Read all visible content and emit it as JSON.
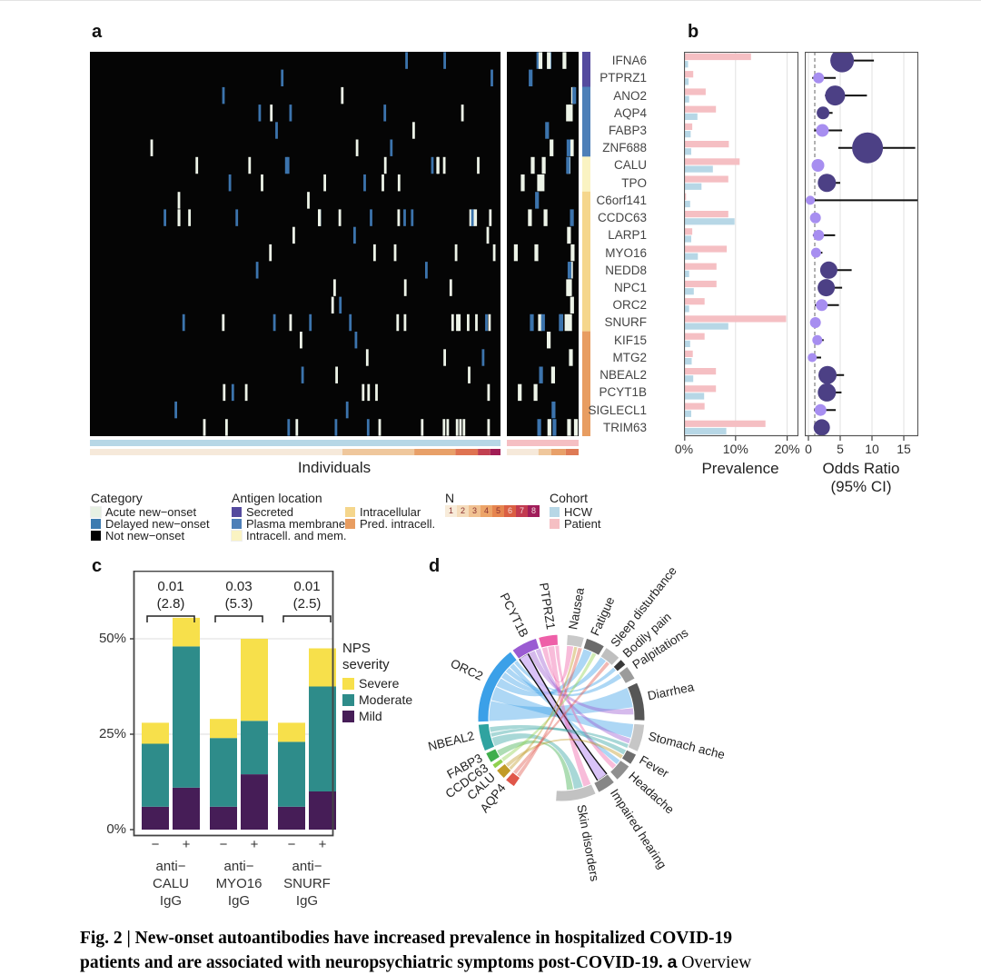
{
  "panels": {
    "a": "a",
    "b": "b",
    "c": "c",
    "d": "d"
  },
  "heatmap_x_title": "Individuals",
  "axes": {
    "prevalence_title": "Prevalence",
    "or_title_line1": "Odds Ratio",
    "or_title_line2": "(95% CI)",
    "prev_ticks": [
      "0%",
      "10%",
      "20%"
    ],
    "or_ticks": [
      "0",
      "5",
      "10",
      "15"
    ],
    "nps_yticks": [
      "50%",
      "25%",
      "0%"
    ]
  },
  "legend": {
    "category": {
      "title": "Category",
      "items": [
        {
          "label": "Acute new−onset",
          "color": "#e7f0e3"
        },
        {
          "label": "Delayed new−onset",
          "color": "#3d7bb0"
        },
        {
          "label": "Not new−onset",
          "color": "#000000"
        }
      ]
    },
    "antigen": {
      "title": "Antigen location",
      "col1": [
        {
          "label": "Secreted",
          "color": "#544a9e"
        },
        {
          "label": "Plasma membrane",
          "color": "#4d7fb8"
        },
        {
          "label": "Intracell. and mem.",
          "color": "#faf3c2"
        }
      ],
      "col2": [
        {
          "label": "Intracellular",
          "color": "#f5d68c"
        },
        {
          "label": "Pred. intracell.",
          "color": "#e89d61"
        }
      ]
    },
    "n": {
      "title": "N",
      "labels": [
        "1",
        "2",
        "3",
        "4",
        "5",
        "6",
        "7",
        "8"
      ],
      "colors": [
        "#f8ecda",
        "#f5dcbb",
        "#f1c292",
        "#eca468",
        "#e6854f",
        "#da5f43",
        "#c23b50",
        "#a01d5a"
      ]
    },
    "cohort": {
      "title": "Cohort",
      "items": [
        {
          "label": "HCW",
          "color": "#b7d7e6"
        },
        {
          "label": "Patient",
          "color": "#f5bfc3"
        }
      ]
    },
    "nps": {
      "title_line1": "NPS",
      "title_line2": "severity",
      "items": [
        {
          "label": "Severe",
          "color": "#f7e04b"
        },
        {
          "label": "Moderate",
          "color": "#2e8c8a"
        },
        {
          "label": "Mild",
          "color": "#461d57"
        }
      ]
    }
  },
  "caption": {
    "line1": "Fig. 2 | New-onset autoantibodies have increased prevalence in hospitalized COVID-19",
    "line2": "patients and are associated with neuropsychiatric symptoms post-COVID-19. ",
    "panel_ref": "a",
    "tail": " Overview"
  },
  "chart_data": [
    {
      "id": "heatmap_a",
      "type": "heatmap",
      "description": "Individuals (columns, HCW block then Patient block) x autoantigens (rows); black = not new-onset, pale green = acute new-onset, blue = delayed new-onset",
      "tick_colors": {
        "acute": "#edf4e8",
        "delayed": "#3c74ad",
        "background": "#050505"
      },
      "rows": [
        {
          "gene": "IFNA6",
          "hcw": 2,
          "pat": 5,
          "blue": 0.55
        },
        {
          "gene": "PTPRZ1",
          "hcw": 2,
          "pat": 1,
          "blue": 0.5
        },
        {
          "gene": "ANO2",
          "hcw": 2,
          "pat": 2,
          "blue": 0.6
        },
        {
          "gene": "AQP4",
          "hcw": 5,
          "pat": 2,
          "blue": 0.4
        },
        {
          "gene": "FABP3",
          "hcw": 2,
          "pat": 1,
          "blue": 0.5
        },
        {
          "gene": "ZNF688",
          "hcw": 3,
          "pat": 3,
          "blue": 0.4
        },
        {
          "gene": "CALU",
          "hcw": 10,
          "pat": 4,
          "blue": 0.35
        },
        {
          "gene": "TPO",
          "hcw": 6,
          "pat": 3,
          "blue": 0.4
        },
        {
          "gene": "C6orf141",
          "hcw": 2,
          "pat": 1,
          "blue": 0.5
        },
        {
          "gene": "CCDC63",
          "hcw": 18,
          "pat": 3,
          "blue": 0.3
        },
        {
          "gene": "LARP1",
          "hcw": 3,
          "pat": 1,
          "blue": 0.4
        },
        {
          "gene": "MYO16",
          "hcw": 5,
          "pat": 3,
          "blue": 0.4
        },
        {
          "gene": "NEDD8",
          "hcw": 2,
          "pat": 2,
          "blue": 0.5
        },
        {
          "gene": "NPC1",
          "hcw": 3,
          "pat": 2,
          "blue": 0.4
        },
        {
          "gene": "ORC2",
          "hcw": 2,
          "pat": 1,
          "blue": 0.5
        },
        {
          "gene": "SNURF",
          "hcw": 15,
          "pat": 7,
          "blue": 0.3
        },
        {
          "gene": "KIF15",
          "hcw": 2,
          "pat": 1,
          "blue": 0.5
        },
        {
          "gene": "MTG2",
          "hcw": 3,
          "pat": 1,
          "blue": 0.4
        },
        {
          "gene": "NBEAL2",
          "hcw": 3,
          "pat": 2,
          "blue": 0.4
        },
        {
          "gene": "PCYT1B",
          "hcw": 7,
          "pat": 2,
          "blue": 0.35
        },
        {
          "gene": "SIGLECL1",
          "hcw": 2,
          "pat": 1,
          "blue": 0.5
        },
        {
          "gene": "TRIM63",
          "hcw": 14,
          "pat": 5,
          "blue": 0.3
        }
      ],
      "antigen_segments": [
        {
          "name": "Secreted",
          "rows": 2,
          "color": "#544a9e"
        },
        {
          "name": "Plasma membrane",
          "rows": 4,
          "color": "#4d7fb8"
        },
        {
          "name": "Intracell. and mem.",
          "rows": 2,
          "color": "#faf3c2"
        },
        {
          "name": "Intracellular",
          "rows": 8,
          "color": "#f5d68c"
        },
        {
          "name": "Pred. intracell.",
          "rows": 6,
          "color": "#e89d61"
        }
      ],
      "cohort_track": {
        "hcw_color": "#b7d7e6",
        "patient_color": "#f5bfc3"
      },
      "n_track_left": [
        {
          "color": "#f6e9da",
          "frac": 0.615
        },
        {
          "color": "#efc79c",
          "frac": 0.175
        },
        {
          "color": "#e8a069",
          "frac": 0.1
        },
        {
          "color": "#df7351",
          "frac": 0.055
        },
        {
          "color": "#c24050",
          "frac": 0.03
        },
        {
          "color": "#a11d55",
          "frac": 0.025
        }
      ],
      "n_track_right": [
        {
          "color": "#f6e9da",
          "frac": 0.44
        },
        {
          "color": "#efc79c",
          "frac": 0.18
        },
        {
          "color": "#e8a069",
          "frac": 0.2
        },
        {
          "color": "#de7a55",
          "frac": 0.18
        }
      ]
    },
    {
      "id": "prevalence_b",
      "type": "bar",
      "orientation": "horizontal",
      "xlabel": "Prevalence",
      "xlim": [
        0,
        22
      ],
      "xticks": [
        0,
        10,
        20
      ],
      "categories": [
        "IFNA6",
        "PTPRZ1",
        "ANO2",
        "AQP4",
        "FABP3",
        "ZNF688",
        "CALU",
        "TPO",
        "C6orf141",
        "CCDC63",
        "LARP1",
        "MYO16",
        "NEDD8",
        "NPC1",
        "ORC2",
        "SNURF",
        "KIF15",
        "MTG2",
        "NBEAL2",
        "PCYT1B",
        "SIGLECL1",
        "TRIM63"
      ],
      "series": [
        {
          "name": "Patient",
          "color": "#f5bfc3",
          "values": [
            13.0,
            1.8,
            4.2,
            6.2,
            1.6,
            8.7,
            10.8,
            8.6,
            0.4,
            8.6,
            1.6,
            8.3,
            6.3,
            6.3,
            4.0,
            19.8,
            4.0,
            1.7,
            6.2,
            6.2,
            4.0,
            15.8
          ]
        },
        {
          "name": "HCW",
          "color": "#b7d7e6",
          "values": [
            0.8,
            0.9,
            1.0,
            2.6,
            1.3,
            1.4,
            5.6,
            3.4,
            1.2,
            9.8,
            1.4,
            2.7,
            1.0,
            1.9,
            1.0,
            8.6,
            1.2,
            1.5,
            1.8,
            3.9,
            1.4,
            8.2
          ]
        }
      ]
    },
    {
      "id": "odds_ratio_b",
      "type": "scatter",
      "xlabel": "Odds Ratio (95% CI)",
      "xlim": [
        0,
        18
      ],
      "xticks": [
        0,
        5,
        10,
        15
      ],
      "ref_line": 1,
      "colors": {
        "significant": "#4c4085",
        "not_significant": "#a78ef0"
      },
      "categories": [
        "IFNA6",
        "PTPRZ1",
        "ANO2",
        "AQP4",
        "FABP3",
        "ZNF688",
        "CALU",
        "TPO",
        "C6orf141",
        "CCDC63",
        "LARP1",
        "MYO16",
        "NEDD8",
        "NPC1",
        "ORC2",
        "SNURF",
        "KIF15",
        "MTG2",
        "NBEAL2",
        "PCYT1B",
        "SIGLECL1",
        "TRIM63"
      ],
      "points": [
        {
          "or": 5.3,
          "lo": 3.6,
          "hi": 10.3,
          "sig": true,
          "r": 13
        },
        {
          "or": 1.6,
          "lo": 0.6,
          "hi": 4.3,
          "sig": false,
          "r": 6
        },
        {
          "or": 4.2,
          "lo": 2.6,
          "hi": 9.2,
          "sig": true,
          "r": 11
        },
        {
          "or": 2.3,
          "lo": 1.4,
          "hi": 3.8,
          "sig": true,
          "r": 7
        },
        {
          "or": 2.2,
          "lo": 0.9,
          "hi": 5.3,
          "sig": false,
          "r": 7
        },
        {
          "or": 9.3,
          "lo": 4.7,
          "hi": 16.8,
          "sig": true,
          "r": 17
        },
        {
          "or": 1.5,
          "lo": 1.0,
          "hi": 2.4,
          "sig": false,
          "r": 7
        },
        {
          "or": 2.9,
          "lo": 1.9,
          "hi": 5.0,
          "sig": true,
          "r": 10
        },
        {
          "or": 0.3,
          "lo": 0.0,
          "hi": 50.0,
          "sig": false,
          "r": 5
        },
        {
          "or": 1.1,
          "lo": 0.7,
          "hi": 1.8,
          "sig": false,
          "r": 6
        },
        {
          "or": 1.6,
          "lo": 0.7,
          "hi": 4.2,
          "sig": false,
          "r": 6
        },
        {
          "or": 1.2,
          "lo": 0.7,
          "hi": 2.2,
          "sig": false,
          "r": 5.5
        },
        {
          "or": 3.2,
          "lo": 1.9,
          "hi": 6.8,
          "sig": true,
          "r": 9.5
        },
        {
          "or": 2.8,
          "lo": 1.6,
          "hi": 5.3,
          "sig": true,
          "r": 9.5
        },
        {
          "or": 2.1,
          "lo": 1.0,
          "hi": 4.8,
          "sig": false,
          "r": 6.5
        },
        {
          "or": 1.1,
          "lo": 0.8,
          "hi": 1.6,
          "sig": false,
          "r": 6
        },
        {
          "or": 1.4,
          "lo": 0.7,
          "hi": 2.4,
          "sig": false,
          "r": 5.5
        },
        {
          "or": 0.6,
          "lo": 0.2,
          "hi": 2.0,
          "sig": false,
          "r": 5
        },
        {
          "or": 3.0,
          "lo": 1.9,
          "hi": 5.6,
          "sig": true,
          "r": 10
        },
        {
          "or": 2.9,
          "lo": 1.8,
          "hi": 5.2,
          "sig": true,
          "r": 10
        },
        {
          "or": 1.9,
          "lo": 0.9,
          "hi": 4.3,
          "sig": false,
          "r": 6.5
        },
        {
          "or": 2.1,
          "lo": 1.5,
          "hi": 3.0,
          "sig": true,
          "r": 9
        }
      ]
    },
    {
      "id": "nps_severity_c",
      "type": "stacked-bar",
      "ylim": [
        0,
        62
      ],
      "yticks": [
        0,
        25,
        50
      ],
      "series_order": [
        "mild",
        "moderate",
        "severe"
      ],
      "colors": {
        "mild": "#461d57",
        "moderate": "#2e8c8a",
        "severe": "#f7e04b"
      },
      "signs": [
        "−",
        "+"
      ],
      "groups": [
        {
          "lines": "anti−\nCALU\nIgG",
          "p": "0.01",
          "or": "(2.8)",
          "bars": [
            {
              "mild": 6,
              "moderate": 16.5,
              "severe": 5.5
            },
            {
              "mild": 11,
              "moderate": 37,
              "severe": 7.5
            }
          ]
        },
        {
          "lines": "anti−\nMYO16\nIgG",
          "p": "0.03",
          "or": "(5.3)",
          "bars": [
            {
              "mild": 6,
              "moderate": 18,
              "severe": 5
            },
            {
              "mild": 14.5,
              "moderate": 14,
              "severe": 21.5
            }
          ]
        },
        {
          "lines": "anti−\nSNURF\nIgG",
          "p": "0.01",
          "or": "(2.5)",
          "bars": [
            {
              "mild": 6,
              "moderate": 17,
              "severe": 5
            },
            {
              "mild": 10,
              "moderate": 27.5,
              "severe": 10
            }
          ]
        }
      ]
    },
    {
      "id": "chord_d",
      "type": "chord",
      "segments": [
        {
          "name": "Nausea",
          "side": "symptom",
          "color": "#c9c9c9",
          "a0": 4,
          "a1": 16
        },
        {
          "name": "Fatigue",
          "side": "symptom",
          "color": "#6b6b6b",
          "a0": 17.5,
          "a1": 31
        },
        {
          "name": "Sleep disturbance",
          "side": "symptom",
          "color": "#bfbfbf",
          "a0": 32.5,
          "a1": 44
        },
        {
          "name": "Bodily pain",
          "side": "symptom",
          "color": "#383838",
          "a0": 45.5,
          "a1": 50.5
        },
        {
          "name": "Palpitations",
          "side": "symptom",
          "color": "#9b9b9b",
          "a0": 52,
          "a1": 62
        },
        {
          "name": "Diarrhea",
          "side": "symptom",
          "color": "#565656",
          "a0": 65,
          "a1": 92
        },
        {
          "name": "Stomach ache",
          "side": "symptom",
          "color": "#c6c6c6",
          "a0": 94.5,
          "a1": 114
        },
        {
          "name": "Fever",
          "side": "symptom",
          "color": "#6e6e6e",
          "a0": 116,
          "a1": 124
        },
        {
          "name": "Headache",
          "side": "symptom",
          "color": "#8f8f8f",
          "a0": 125.5,
          "a1": 138
        },
        {
          "name": "Impaired hearing",
          "side": "symptom",
          "color": "#878787",
          "a0": 140.5,
          "a1": 153.5
        },
        {
          "name": "Skin disorders",
          "side": "symptom",
          "color": "#c2c2c2",
          "a0": 155.5,
          "a1": 184
        },
        {
          "name": "AQP4",
          "side": "gene",
          "color": "#e0564a",
          "a0": 214.5,
          "a1": 222
        },
        {
          "name": "CALU",
          "side": "gene",
          "color": "#c29b28",
          "a0": 223.5,
          "a1": 231
        },
        {
          "name": "CCDC63",
          "side": "gene",
          "color": "#90d14f",
          "a0": 232.5,
          "a1": 236
        },
        {
          "name": "FABP3",
          "side": "gene",
          "color": "#3fae4c",
          "a0": 237.5,
          "a1": 245
        },
        {
          "name": "NBEAL2",
          "side": "gene",
          "color": "#2fa3a0",
          "a0": 246.5,
          "a1": 265.5
        },
        {
          "name": "ORC2",
          "side": "gene",
          "color": "#3ba0e8",
          "a0": 267,
          "a1": 322.5
        },
        {
          "name": "PCYT1B",
          "side": "gene",
          "color": "#9a5bd2",
          "a0": 324,
          "a1": 342.5
        },
        {
          "name": "PTPRZ1",
          "side": "gene",
          "color": "#ee5fa8",
          "a0": 344,
          "a1": 357.5
        }
      ],
      "links": [
        {
          "gene": "ORC2",
          "symptom": "Diarrhea",
          "gw": 16,
          "sw": 16
        },
        {
          "gene": "ORC2",
          "symptom": "Stomach ache",
          "gw": 11,
          "sw": 11
        },
        {
          "gene": "ORC2",
          "symptom": "Fatigue",
          "gw": 7,
          "sw": 7
        },
        {
          "gene": "ORC2",
          "symptom": "Sleep disturbance",
          "gw": 5,
          "sw": 5
        },
        {
          "gene": "ORC2",
          "symptom": "Palpitations",
          "gw": 4,
          "sw": 4
        },
        {
          "gene": "ORC2",
          "symptom": "Headache",
          "gw": 4,
          "sw": 4
        },
        {
          "gene": "ORC2",
          "symptom": "Bodily pain",
          "gw": 3,
          "sw": 3
        },
        {
          "gene": "PCYT1B",
          "symptom": "Impaired hearing",
          "gw": 8,
          "sw": 9,
          "outlined": true
        },
        {
          "gene": "PCYT1B",
          "symptom": "Diarrhea",
          "gw": 5,
          "sw": 5
        },
        {
          "gene": "PCYT1B",
          "symptom": "Stomach ache",
          "gw": 4,
          "sw": 4
        },
        {
          "gene": "PTPRZ1",
          "symptom": "Nausea",
          "gw": 4,
          "sw": 5
        },
        {
          "gene": "PTPRZ1",
          "symptom": "Skin disorders",
          "gw": 5,
          "sw": 6
        },
        {
          "gene": "PTPRZ1",
          "symptom": "Headache",
          "gw": 3,
          "sw": 4
        },
        {
          "gene": "NBEAL2",
          "symptom": "Skin disorders",
          "gw": 7,
          "sw": 7
        },
        {
          "gene": "NBEAL2",
          "symptom": "Stomach ache",
          "gw": 3,
          "sw": 3
        },
        {
          "gene": "NBEAL2",
          "symptom": "Fever",
          "gw": 4,
          "sw": 4
        },
        {
          "gene": "FABP3",
          "symptom": "Skin disorders",
          "gw": 5,
          "sw": 5
        },
        {
          "gene": "CCDC63",
          "symptom": "Fatigue",
          "gw": 3,
          "sw": 3
        },
        {
          "gene": "CALU",
          "symptom": "Nausea",
          "gw": 2.5,
          "sw": 2.5
        },
        {
          "gene": "CALU",
          "symptom": "Fever",
          "gw": 3,
          "sw": 3
        },
        {
          "gene": "AQP4",
          "symptom": "Nausea",
          "gw": 3,
          "sw": 3
        },
        {
          "gene": "AQP4",
          "symptom": "Sleep disturbance",
          "gw": 3,
          "sw": 3
        }
      ],
      "outlined_link_color": "#d0b4f5"
    }
  ]
}
